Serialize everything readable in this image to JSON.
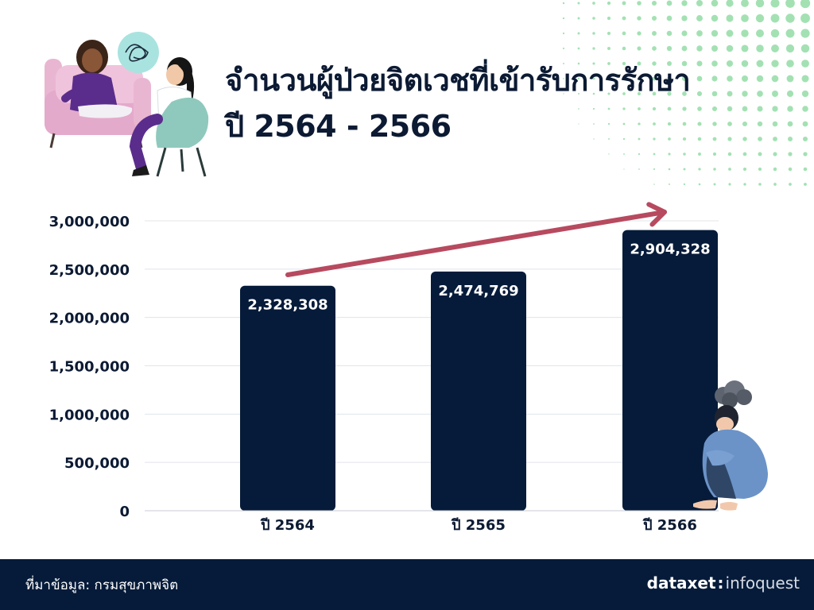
{
  "header": {
    "title_line1": "จำนวนผู้ป่วยจิตเวชที่เข้ารับการรักษา",
    "title_line2": "ปี 2564 - 2566"
  },
  "chart_data": {
    "type": "bar",
    "categories": [
      "ปี 2564",
      "ปี 2565",
      "ปี 2566"
    ],
    "values": [
      2328308,
      2474769,
      2904328
    ],
    "data_labels": [
      "2,328,308",
      "2,474,769",
      "2,904,328"
    ],
    "yticks": [
      0,
      500000,
      1000000,
      1500000,
      2000000,
      2500000,
      3000000
    ],
    "ytick_labels": [
      "0",
      "500,000",
      "1,000,000",
      "1,500,000",
      "2,000,000",
      "2,500,000",
      "3,000,000"
    ],
    "ylim": [
      0,
      3000000
    ],
    "grid": true,
    "trend_arrow": true
  },
  "footer": {
    "source": "ที่มาข้อมูล: กรมสุขภาพจิต",
    "brand_left": "dataxet",
    "brand_sep": ":",
    "brand_right": "infoquest"
  },
  "colors": {
    "bar": "#061b3a",
    "bar_label": "#ffffff",
    "axis_text": "#0c1a33",
    "grid": "#e1e4ea",
    "arrow": "#b74a5f",
    "dots": "#93dca6",
    "footer_bg": "#061b3a"
  },
  "icons": {
    "therapy_illustration": "therapy-session-illustration",
    "sad_person_illustration": "distressed-person-illustration"
  }
}
